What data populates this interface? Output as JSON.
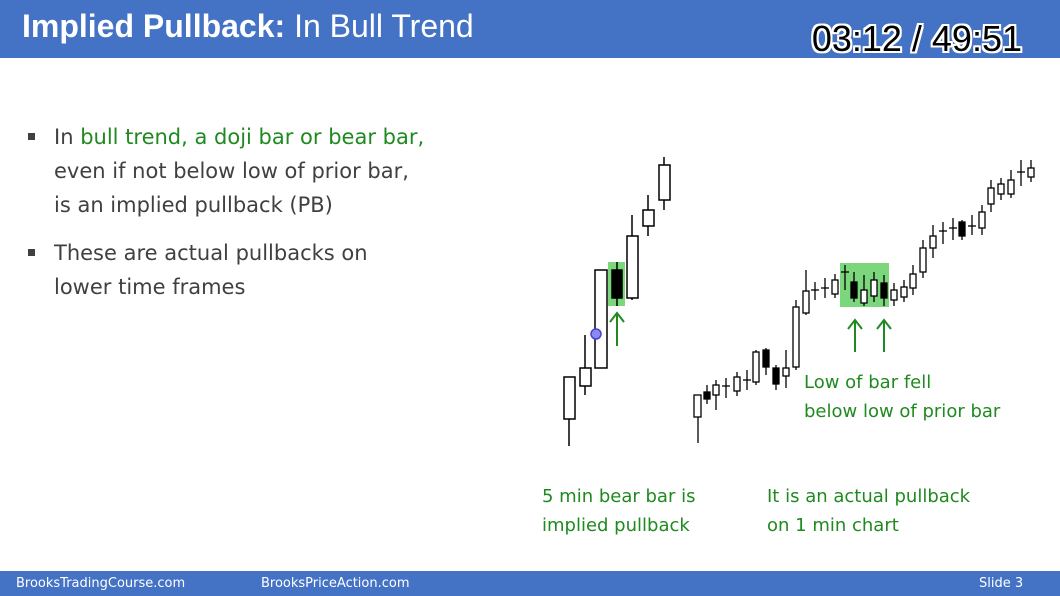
{
  "header": {
    "title_bold": "Implied Pullback:",
    "title_rest": " In Bull Trend",
    "timer": "03:12 / 49:51"
  },
  "bullets": [
    {
      "green": "bull trend, a doji bar or bear bar,",
      "prefix": "In ",
      "line2": "even if not below low of prior bar,",
      "line3": "is an implied pullback (PB)"
    },
    {
      "line1": "These are actual pullbacks on",
      "line2": "lower time frames"
    }
  ],
  "captions": {
    "five_min_1": "5 min bear bar is",
    "five_min_2": "implied pullback",
    "one_min_1": "It is an actual pullback",
    "one_min_2": "on 1 min chart",
    "low_bar_1": "Low of bar fell",
    "low_bar_2": "below low of prior bar"
  },
  "footer": {
    "left": "BrooksTradingCourse.com",
    "middle": "BrooksPriceAction.com",
    "right": "Slide  3"
  },
  "colors": {
    "accent": "#4472c4",
    "green_text": "#1f8a1f",
    "highlight": "#7cd67c"
  }
}
